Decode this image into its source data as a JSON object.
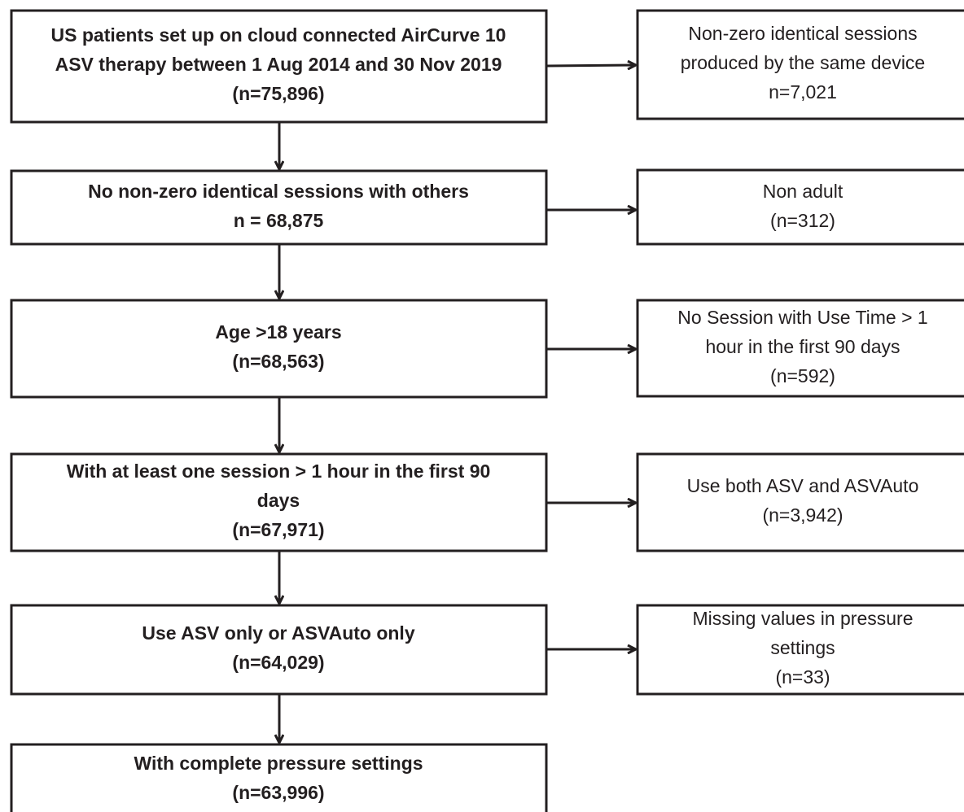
{
  "main_boxes": [
    {
      "lines": [
        "US patients set up on cloud connected AirCurve 10",
        "ASV therapy between 1 Aug 2014 and 30 Nov 2019",
        "(n=75,896)"
      ]
    },
    {
      "lines": [
        "No non-zero identical sessions with others",
        "n = 68,875"
      ]
    },
    {
      "lines": [
        "Age >18 years",
        "(n=68,563)"
      ]
    },
    {
      "lines": [
        "With at least one session > 1 hour in the first 90",
        "days",
        "(n=67,971)"
      ]
    },
    {
      "lines": [
        "Use ASV only or ASVAuto only",
        "(n=64,029)"
      ]
    },
    {
      "lines": [
        "With complete pressure settings",
        "(n=63,996)"
      ]
    }
  ],
  "side_boxes": [
    {
      "lines": [
        "Non-zero identical sessions",
        "produced by the same device",
        "n=7,021"
      ]
    },
    {
      "lines": [
        "Non adult",
        "(n=312)"
      ]
    },
    {
      "lines": [
        "No Session with Use Time > 1",
        "hour in the first 90 days",
        "(n=592)"
      ]
    },
    {
      "lines": [
        "Use both ASV and ASVAuto",
        "(n=3,942)"
      ]
    },
    {
      "lines": [
        "Missing values in pressure",
        "settings",
        "(n=33)"
      ]
    }
  ]
}
